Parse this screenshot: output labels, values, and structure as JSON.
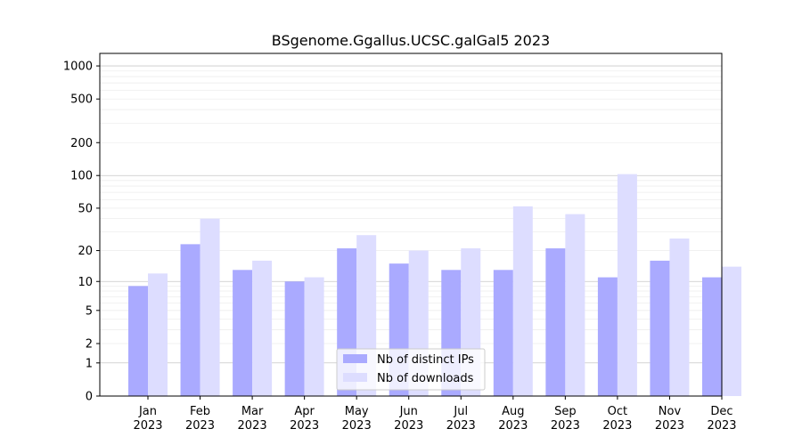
{
  "chart_data": {
    "type": "bar",
    "title": "BSgenome.Ggallus.UCSC.galGal5 2023",
    "xlabel": "",
    "ylabel": "",
    "y_scale": "log1p",
    "ylim": [
      0,
      1300
    ],
    "y_ticks": [
      0,
      1,
      2,
      5,
      10,
      20,
      50,
      100,
      200,
      500,
      1000
    ],
    "y_tick_labels": [
      "0",
      "1",
      "2",
      "5",
      "10",
      "20",
      "50",
      "100",
      "200",
      "500",
      "1000"
    ],
    "categories": [
      "Jan",
      "Feb",
      "Mar",
      "Apr",
      "May",
      "Jun",
      "Jul",
      "Aug",
      "Sep",
      "Oct",
      "Nov",
      "Dec"
    ],
    "category_year": "2023",
    "series": [
      {
        "name": "Nb of distinct IPs",
        "color": "#aaaaff",
        "values": [
          9,
          23,
          13,
          10,
          21,
          15,
          13,
          13,
          21,
          11,
          16,
          11
        ]
      },
      {
        "name": "Nb of downloads",
        "color": "#ddddff",
        "values": [
          12,
          40,
          16,
          11,
          28,
          20,
          21,
          52,
          44,
          103,
          26,
          14
        ]
      }
    ],
    "grid": true,
    "legend_position": "bottom-center"
  }
}
